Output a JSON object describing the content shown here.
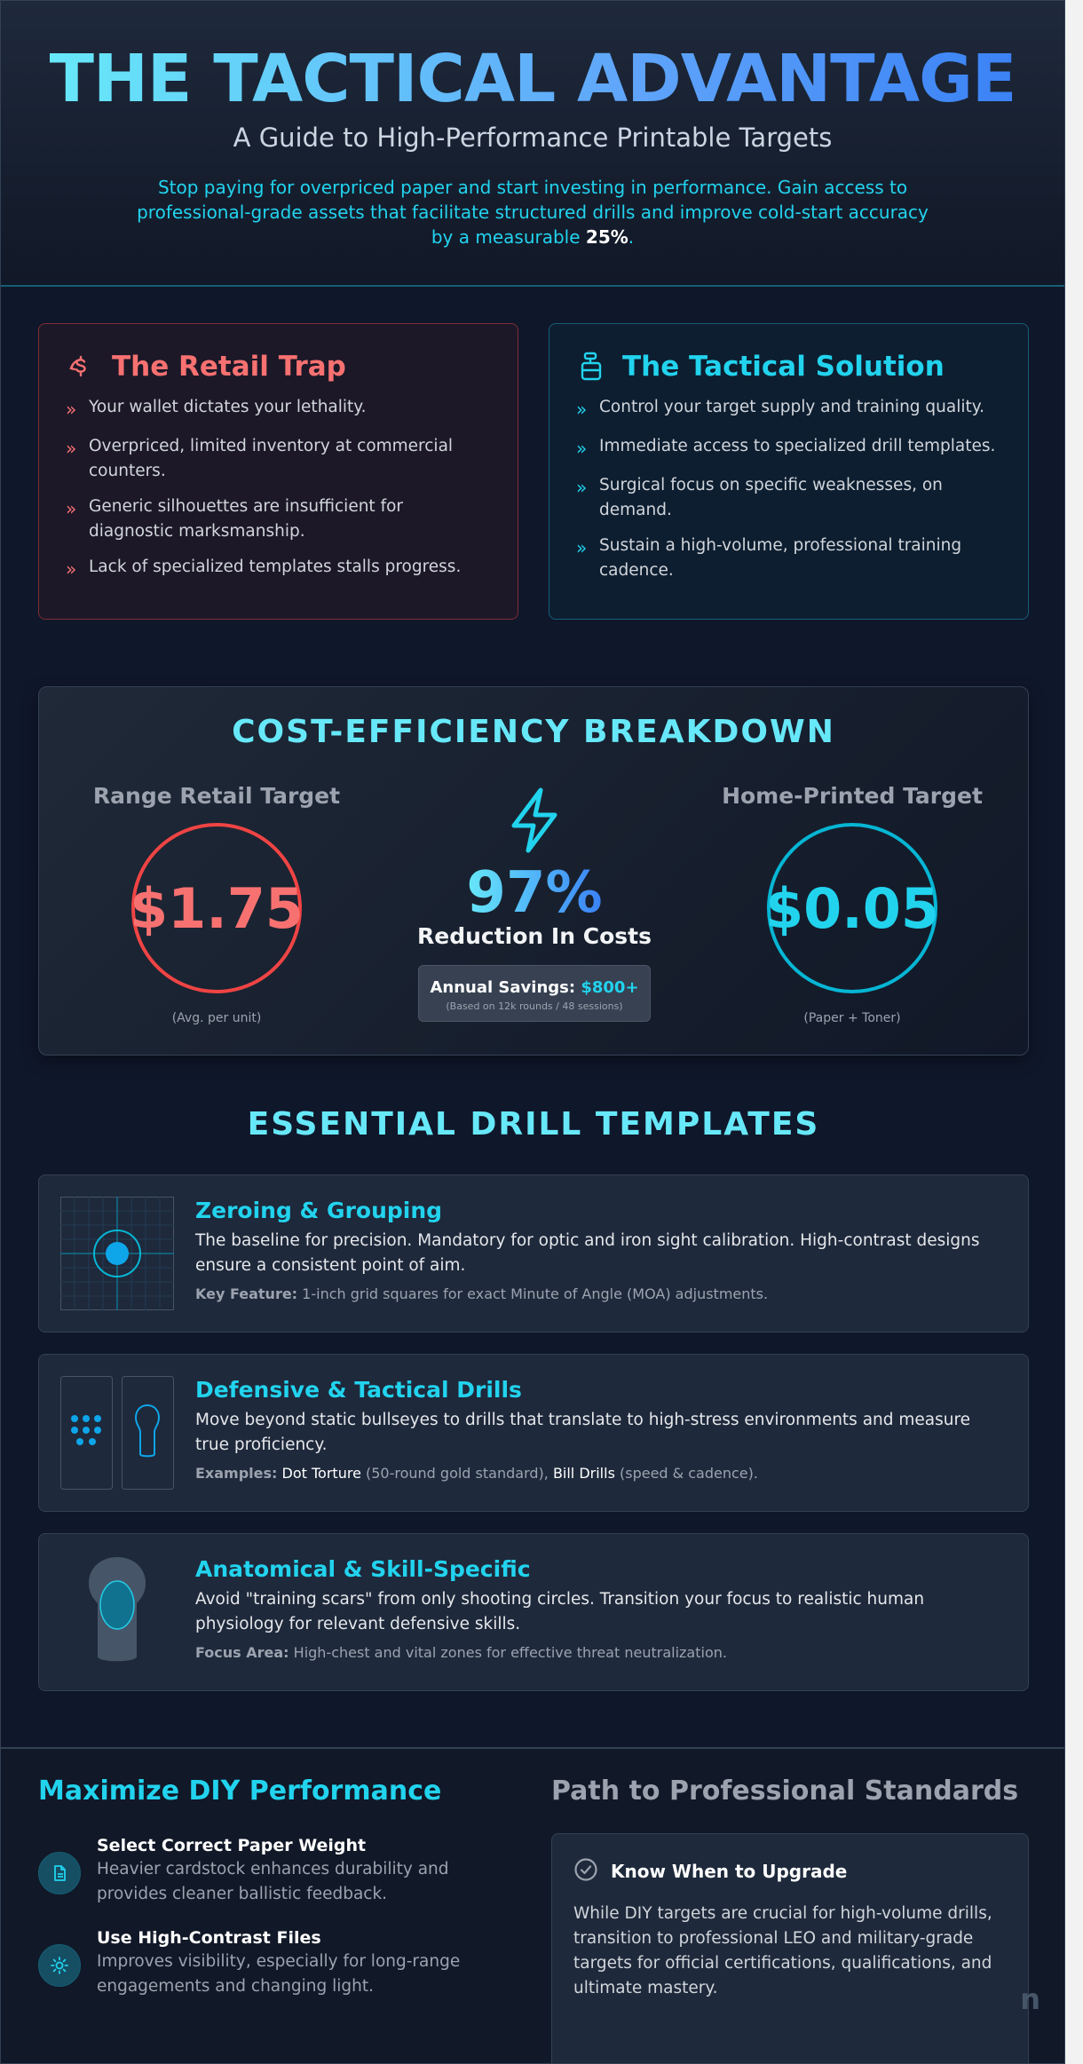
{
  "header": {
    "title": "THE TACTICAL ADVANTAGE",
    "subtitle": "A Guide to High-Performance Printable Targets",
    "intro_text": "Stop paying for overpriced paper and start investing in performance. Gain access to professional-grade assets that facilitate structured drills and improve cold-start accuracy by a measurable ",
    "intro_highlight": "25%",
    "intro_end": "."
  },
  "retail_trap": {
    "title": "The Retail Trap",
    "icon": "no-money-icon",
    "color": "#f87171",
    "items": [
      "Your wallet dictates your lethality.",
      "Overpriced, limited inventory at commercial counters.",
      "Generic silhouettes are insufficient for diagnostic marksmanship.",
      "Lack of specialized templates stalls progress."
    ]
  },
  "tactical_solution": {
    "title": "The Tactical Solution",
    "icon": "printer-icon",
    "color": "#22d3ee",
    "items": [
      "Control your target supply and training quality.",
      "Immediate access to specialized drill templates.",
      "Surgical focus on specific weaknesses, on demand.",
      "Sustain a high-volume, professional training cadence."
    ]
  },
  "cost": {
    "title": "COST-EFFICIENCY BREAKDOWN",
    "retail": {
      "label": "Range Retail Target",
      "price": "$1.75",
      "note": "(Avg. per unit)"
    },
    "home": {
      "label": "Home-Printed Target",
      "price": "$0.05",
      "note": "(Paper + Toner)"
    },
    "reduction_pct": "97%",
    "reduction_label": "Reduction In Costs",
    "savings_label": "Annual Savings:",
    "savings_value": "$800+",
    "savings_note": "(Based on 12k rounds / 48 sessions)"
  },
  "drills": {
    "title": "ESSENTIAL DRILL TEMPLATES",
    "items": [
      {
        "title": "Zeroing & Grouping",
        "desc": "The baseline for precision. Mandatory for optic and iron sight calibration. High-contrast designs ensure a consistent point of aim.",
        "meta_key": "Key Feature:",
        "meta_text": "1-inch grid squares for exact Minute of Angle (MOA) adjustments."
      },
      {
        "title": "Defensive & Tactical Drills",
        "desc": "Move beyond static bullseyes to drills that translate to high-stress environments and measure true proficiency.",
        "meta_key": "Examples:",
        "meta_a": "Dot Torture",
        "meta_b": "(50-round gold standard),",
        "meta_c": "Bill Drills",
        "meta_d": "(speed & cadence)."
      },
      {
        "title": "Anatomical & Skill-Specific",
        "desc": "Avoid \"training scars\" from only shooting circles. Transition your focus to realistic human physiology for relevant defensive skills.",
        "meta_key": "Focus Area:",
        "meta_text": "High-chest and vital zones for effective threat neutralization."
      }
    ]
  },
  "footer": {
    "diy_title": "Maximize DIY Performance",
    "tips": [
      {
        "icon": "document-icon",
        "title": "Select Correct Paper Weight",
        "desc": "Heavier cardstock enhances durability and provides cleaner ballistic feedback."
      },
      {
        "icon": "sun-icon",
        "title": "Use High-Contrast Files",
        "desc": "Improves visibility, especially for long-range engagements and changing light."
      }
    ],
    "path_title": "Path to Professional Standards",
    "path_card_title": "Know When to Upgrade",
    "path_card_desc": "While DIY targets are crucial for high-volume drills, transition to professional LEO and military-grade targets for official certifications, qualifications, and ultimate mastery.",
    "watermark": "n"
  }
}
